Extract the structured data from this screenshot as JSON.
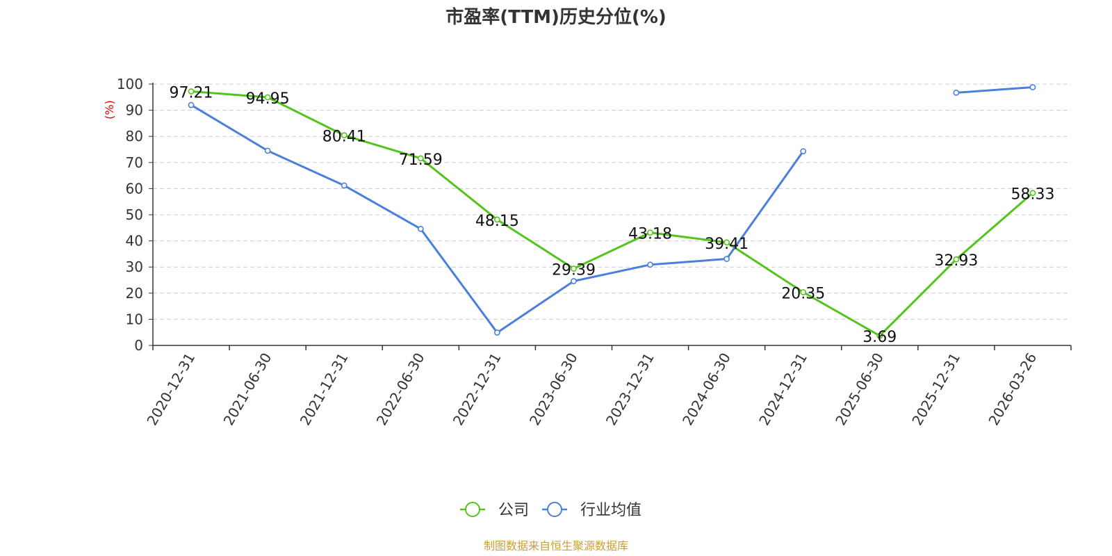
{
  "chart_data": {
    "type": "line",
    "title": "市盈率(TTM)历史分位(%)",
    "ylabel": "(%)",
    "ylim": [
      0,
      100
    ],
    "yticks": [
      0,
      10,
      20,
      30,
      40,
      50,
      60,
      70,
      80,
      90,
      100
    ],
    "categories": [
      "2020-12-31",
      "2021-06-30",
      "2021-12-31",
      "2022-06-30",
      "2022-12-31",
      "2023-06-30",
      "2023-12-31",
      "2024-06-30",
      "2024-12-31",
      "2025-06-30",
      "2025-12-31",
      "2026-03-26"
    ],
    "grid": true,
    "legend_position": "bottom-center",
    "series": [
      {
        "name": "公司",
        "color": "#52c41a",
        "show_labels": true,
        "values": [
          97.21,
          94.95,
          80.41,
          71.59,
          48.15,
          29.39,
          43.18,
          39.41,
          20.35,
          3.69,
          32.93,
          58.33
        ],
        "labels": [
          "97.21",
          "94.95",
          "80.41",
          "71.59",
          "48.15",
          "29.39",
          "43.18",
          "39.41",
          "20.35",
          "3.69",
          "32.93",
          "58.33"
        ]
      },
      {
        "name": "行业均值",
        "color": "#4a7fdc",
        "show_labels": false,
        "values": [
          92.0,
          74.5,
          61.2,
          44.6,
          4.9,
          24.6,
          30.9,
          33.1,
          74.3,
          null,
          96.7,
          98.8
        ]
      }
    ]
  },
  "footer": {
    "source": "制图数据来自恒生聚源数据库"
  }
}
